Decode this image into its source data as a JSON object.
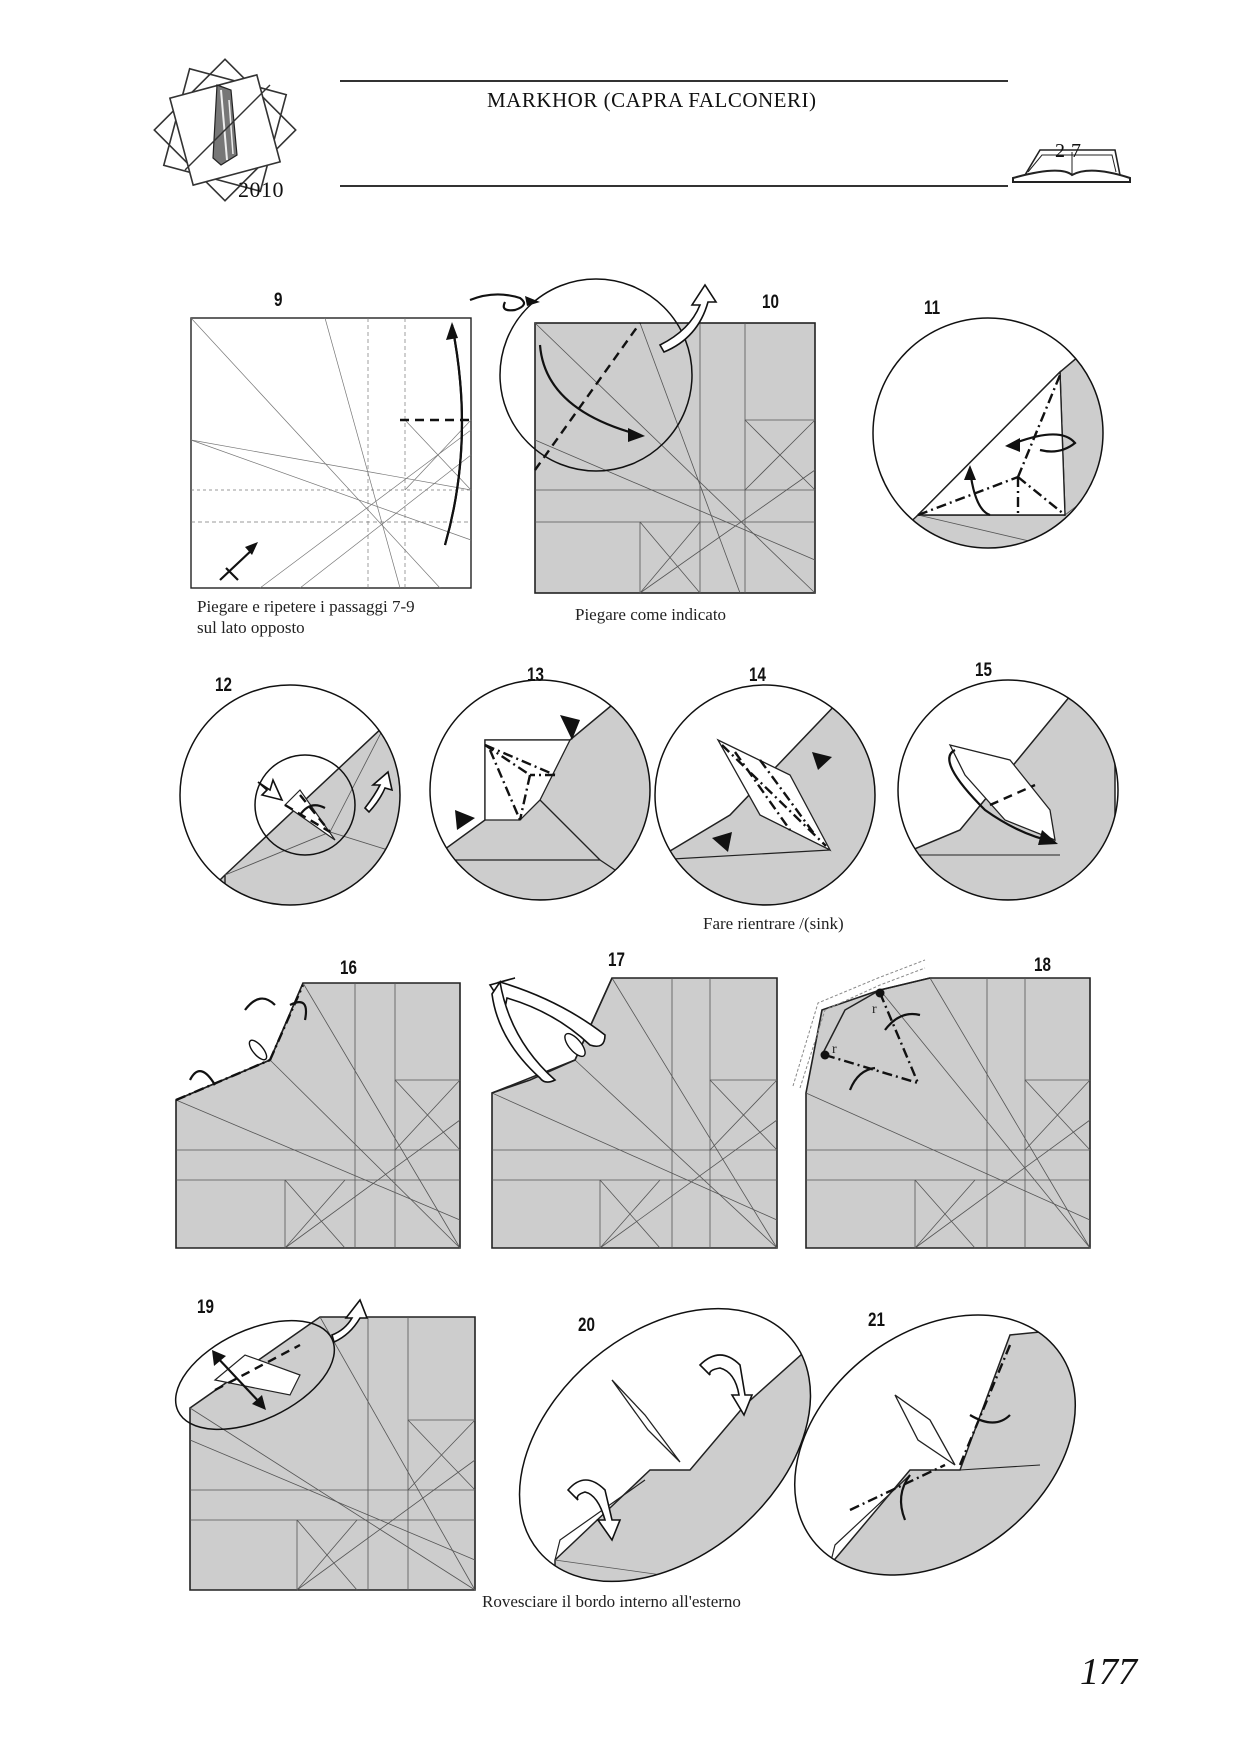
{
  "header": {
    "title": "MARKHOR (CAPRA FALCONERI)",
    "logo_year": "2010",
    "chapter_badge": "2 7",
    "icons": [
      "origami-logo-icon",
      "open-book-icon"
    ]
  },
  "steps": [
    {
      "num": "9",
      "caption_lines": [
        "Piegare e ripetere i passaggi 7-9",
        "sul lato opposto"
      ]
    },
    {
      "num": "10",
      "caption_lines": [
        "Piegare come indicato"
      ]
    },
    {
      "num": "11",
      "caption_lines": []
    },
    {
      "num": "12",
      "caption_lines": []
    },
    {
      "num": "13",
      "caption_lines": []
    },
    {
      "num": "14",
      "caption_lines": [
        "Fare rientrare /(sink)"
      ]
    },
    {
      "num": "15",
      "caption_lines": []
    },
    {
      "num": "16",
      "caption_lines": []
    },
    {
      "num": "17",
      "caption_lines": []
    },
    {
      "num": "18",
      "caption_lines": [],
      "marks": [
        "r",
        "r"
      ]
    },
    {
      "num": "19",
      "caption_lines": []
    },
    {
      "num": "20",
      "caption_lines": [
        "Rovesciare il bordo interno all'esterno"
      ]
    },
    {
      "num": "21",
      "caption_lines": []
    }
  ],
  "page_number": "177"
}
